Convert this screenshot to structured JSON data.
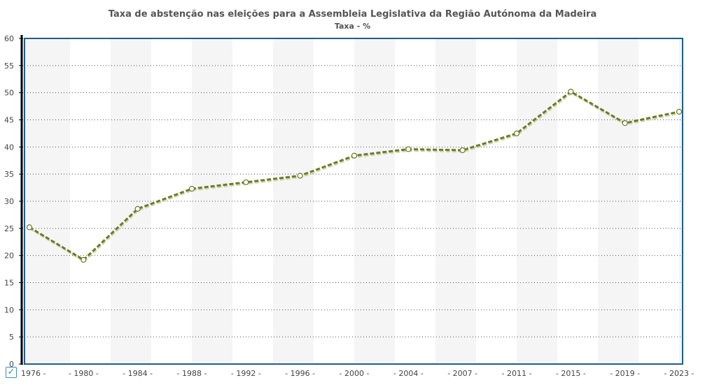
{
  "chart_data": {
    "type": "line",
    "title": "Taxa de abstenção nas eleições para a Assembleia Legislativa da Região Autónoma da Madeira",
    "subtitle": "Taxa - %",
    "categories": [
      "1976",
      "1980",
      "1984",
      "1988",
      "1992",
      "1996",
      "2000",
      "2004",
      "2007",
      "2011",
      "2015",
      "2019",
      "2023"
    ],
    "series": [
      {
        "values": [
          25.2,
          19.2,
          28.6,
          32.3,
          33.5,
          34.7,
          38.4,
          39.6,
          39.4,
          42.5,
          50.2,
          44.4,
          46.5
        ]
      }
    ],
    "ylim": [
      0,
      60
    ],
    "yticks": [
      0,
      5,
      10,
      15,
      20,
      25,
      30,
      35,
      40,
      45,
      50,
      55,
      60
    ],
    "grid": true,
    "line_color": "#6b7a2a",
    "frame_color": "#1f5f8b"
  },
  "legend_checkbox": "✓"
}
